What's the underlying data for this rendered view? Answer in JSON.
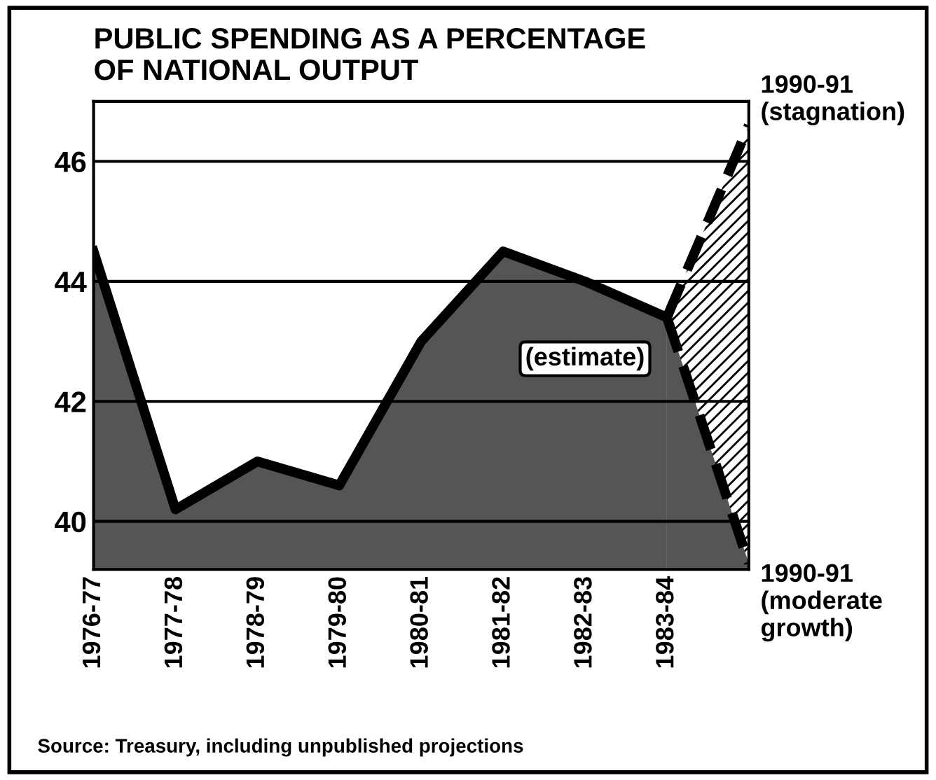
{
  "chart_data": {
    "type": "area",
    "title": "PUBLIC SPENDING AS A PERCENTAGE\nOF NATIONAL OUTPUT",
    "categories": [
      "1976-77",
      "1977-78",
      "1978-79",
      "1979-80",
      "1980-81",
      "1981-82",
      "1982-83",
      "1983-84",
      null
    ],
    "series": [
      {
        "name": "1990-91\n(stagnation)",
        "line_style": "dashed",
        "color": "#000000",
        "values": [
          null,
          null,
          null,
          null,
          null,
          null,
          null,
          43.4,
          46.6
        ]
      },
      {
        "name": "1990-91\n(moderate\ngrowth)",
        "line_style": "dashed",
        "color": "#555555",
        "values": [
          null,
          null,
          null,
          null,
          null,
          null,
          null,
          43.4,
          39.3
        ]
      },
      {
        "line_style": "solid",
        "color": "#555555",
        "values": [
          44.5,
          40.2,
          41.0,
          40.6,
          43.0,
          44.5,
          44.0,
          43.4,
          null
        ]
      }
    ],
    "ylim": [
      39.2,
      47.0
    ],
    "yticks": [
      40,
      42,
      44,
      46
    ],
    "grid": "y",
    "annotations": [
      "(estimate)",
      "Source: Treasury, including unpublished projections"
    ]
  }
}
